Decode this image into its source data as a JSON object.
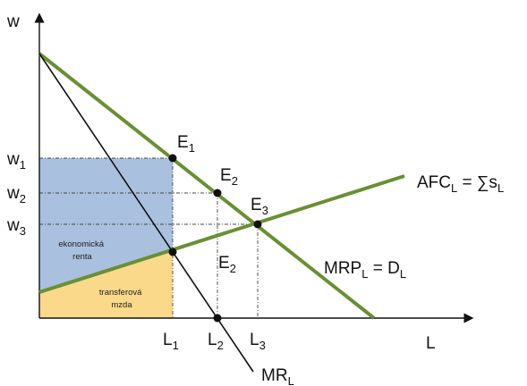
{
  "axes": {
    "y_label": "w",
    "x_label": "L"
  },
  "y_ticks": [
    {
      "base": "w",
      "sub": "1"
    },
    {
      "base": "w",
      "sub": "2"
    },
    {
      "base": "w",
      "sub": "3"
    }
  ],
  "x_ticks": [
    {
      "base": "L",
      "sub": "1"
    },
    {
      "base": "L",
      "sub": "2"
    },
    {
      "base": "L",
      "sub": "3"
    }
  ],
  "curves": {
    "mrp": {
      "base": "MRP",
      "sub": "L",
      "rest": " = D",
      "sub2": "L",
      "color": "#6a8f34"
    },
    "afc": {
      "base": "AFC",
      "sub": "L",
      "rest": " = ∑s",
      "sub2": "L",
      "color": "#6a8f34"
    },
    "mr": {
      "base": "MR",
      "sub": "L",
      "color": "#111111"
    }
  },
  "points": [
    {
      "base": "E",
      "sub": "1"
    },
    {
      "base": "E",
      "sub": "2"
    },
    {
      "base": "E",
      "sub": "3"
    },
    {
      "base": "E",
      "sub": "2"
    }
  ],
  "areas": {
    "economic_rent": {
      "line1": "ekonomická",
      "line2": "renta",
      "color": "#a9c1de"
    },
    "transfer_earnings": {
      "line1": "transferová",
      "line2": "mzda",
      "color": "#fbd98a"
    }
  }
}
